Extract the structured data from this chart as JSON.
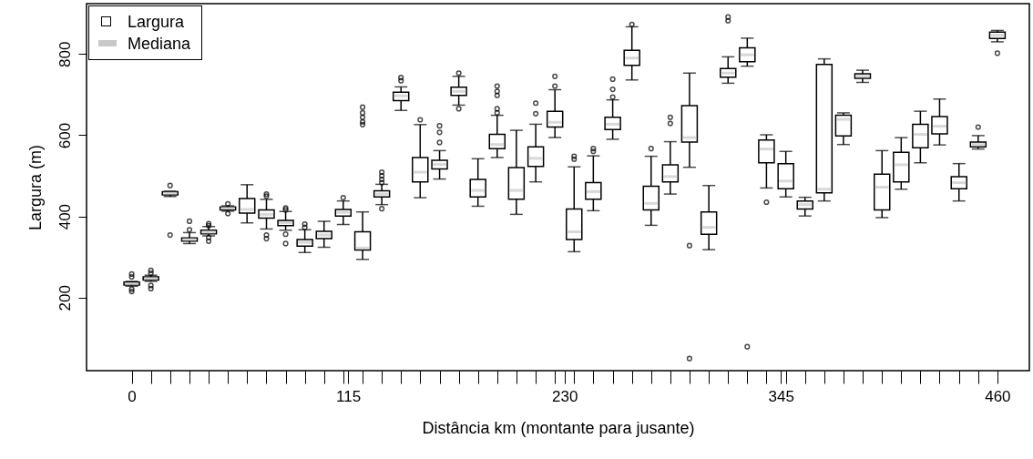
{
  "chart_data": {
    "type": "box",
    "xlabel": "Distância km (montante para jusante)",
    "ylabel": "Largura (m)",
    "xlim": [
      -24,
      477
    ],
    "ylim": [
      20,
      924
    ],
    "xticks": [
      0,
      115,
      230,
      345,
      460,
      {
        "value": 10.2,
        "label": null
      },
      {
        "value": 20.4,
        "label": null
      },
      {
        "value": 30.7,
        "label": null
      },
      {
        "value": 40.9,
        "label": null
      },
      {
        "value": 51.1,
        "label": null
      },
      {
        "value": 61.3,
        "label": null
      },
      {
        "value": 71.6,
        "label": null
      },
      {
        "value": 81.8,
        "label": null
      },
      {
        "value": 92,
        "label": null
      },
      {
        "value": 102.2,
        "label": null
      },
      {
        "value": 112.4,
        "label": null
      },
      {
        "value": 122.7,
        "label": null
      },
      {
        "value": 132.9,
        "label": null
      },
      {
        "value": 143.1,
        "label": null
      },
      {
        "value": 153.3,
        "label": null
      },
      {
        "value": 163.6,
        "label": null
      },
      {
        "value": 173.8,
        "label": null
      },
      {
        "value": 184,
        "label": null
      },
      {
        "value": 194.2,
        "label": null
      },
      {
        "value": 204.4,
        "label": null
      },
      {
        "value": 214.7,
        "label": null
      },
      {
        "value": 224.9,
        "label": null
      },
      {
        "value": 235.1,
        "label": null
      },
      {
        "value": 245.3,
        "label": null
      },
      {
        "value": 255.6,
        "label": null
      },
      {
        "value": 265.8,
        "label": null
      },
      {
        "value": 276,
        "label": null
      },
      {
        "value": 286.2,
        "label": null
      },
      {
        "value": 296.4,
        "label": null
      },
      {
        "value": 306.7,
        "label": null
      },
      {
        "value": 316.9,
        "label": null
      },
      {
        "value": 327.1,
        "label": null
      },
      {
        "value": 337.3,
        "label": null
      },
      {
        "value": 347.6,
        "label": null
      },
      {
        "value": 357.8,
        "label": null
      },
      {
        "value": 368,
        "label": null
      },
      {
        "value": 378.2,
        "label": null
      },
      {
        "value": 388.4,
        "label": null
      },
      {
        "value": 398.7,
        "label": null
      },
      {
        "value": 408.9,
        "label": null
      },
      {
        "value": 419.1,
        "label": null
      },
      {
        "value": 429.3,
        "label": null
      },
      {
        "value": 439.6,
        "label": null
      },
      {
        "value": 449.8,
        "label": null
      }
    ],
    "yticks": [
      200,
      400,
      600,
      800
    ],
    "grid": false,
    "legend": "top left",
    "annotations": [
      "Mediana"
    ],
    "series": [
      {
        "name": "Largura",
        "color": "#000000",
        "x": [
          0,
          10.2,
          20.4,
          30.7,
          40.9,
          51.1,
          61.3,
          71.6,
          81.8,
          92,
          102.2,
          112.4,
          122.7,
          132.9,
          143.1,
          153.3,
          163.6,
          173.8,
          184,
          194.2,
          204.4,
          214.7,
          224.9,
          235.1,
          245.3,
          255.6,
          265.8,
          276,
          286.2,
          296.4,
          306.7,
          316.9,
          327.1,
          337.3,
          347.6,
          357.8,
          368,
          378.2,
          388.4,
          398.7,
          408.9,
          419.1,
          429.3,
          439.6,
          449.8,
          460
        ],
        "boxes": [
          {
            "low": 228,
            "q1": 231,
            "median": 234,
            "q3": 238,
            "high": 240,
            "outliers": [
              258,
              251,
              221,
              215
            ]
          },
          {
            "low": 240,
            "q1": 243,
            "median": 247,
            "q3": 251,
            "high": 255,
            "outliers": [
              267,
              260,
              230,
              222
            ]
          },
          {
            "low": 449,
            "q1": 453,
            "median": 457,
            "q3": 461,
            "high": 462,
            "outliers": [
              476,
              354
            ]
          },
          {
            "low": 333,
            "q1": 339,
            "median": 343,
            "q3": 347,
            "high": 360,
            "outliers": [
              388,
              367
            ]
          },
          {
            "low": 352,
            "q1": 357,
            "median": 361,
            "q3": 366,
            "high": 375,
            "outliers": [
              382,
              377,
              348,
              339
            ]
          },
          {
            "low": 413,
            "q1": 416,
            "median": 420,
            "q3": 423,
            "high": 426,
            "outliers": [
              431,
              407
            ]
          },
          {
            "low": 384,
            "q1": 408,
            "median": 417,
            "q3": 444,
            "high": 478
          },
          {
            "low": 369,
            "q1": 396,
            "median": 405,
            "q3": 416,
            "high": 442,
            "outliers": [
              455,
              450,
              354,
              345
            ]
          },
          {
            "low": 366,
            "q1": 377,
            "median": 384,
            "q3": 390,
            "high": 412,
            "outliers": [
              421,
              416,
              356,
              333
            ]
          },
          {
            "low": 311,
            "q1": 327,
            "median": 336,
            "q3": 343,
            "high": 367,
            "outliers": [
              381,
              373
            ]
          },
          {
            "low": 324,
            "q1": 345,
            "median": 354,
            "q3": 363,
            "high": 388
          },
          {
            "low": 380,
            "q1": 401,
            "median": 410,
            "q3": 417,
            "high": 438,
            "outliers": [
              446
            ]
          },
          {
            "low": 294,
            "q1": 317,
            "median": 322,
            "q3": 362,
            "high": 411,
            "outliers": [
              669,
              655,
              644,
              633,
              626
            ]
          },
          {
            "low": 429,
            "q1": 448,
            "median": 455,
            "q3": 463,
            "high": 479,
            "outliers": [
              509,
              500,
              491,
              483,
              419
            ]
          },
          {
            "low": 661,
            "q1": 685,
            "median": 697,
            "q3": 706,
            "high": 719,
            "outliers": [
              742,
              734
            ]
          },
          {
            "low": 446,
            "q1": 485,
            "median": 509,
            "q3": 545,
            "high": 626,
            "outliers": [
              638
            ]
          },
          {
            "low": 492,
            "q1": 517,
            "median": 528,
            "q3": 538,
            "high": 562,
            "outliers": [
              623,
              607,
              582
            ]
          },
          {
            "low": 674,
            "q1": 698,
            "median": 708,
            "q3": 718,
            "high": 745,
            "outliers": [
              753,
              665
            ]
          },
          {
            "low": 425,
            "q1": 448,
            "median": 464,
            "q3": 491,
            "high": 542
          },
          {
            "low": 545,
            "q1": 567,
            "median": 577,
            "q3": 602,
            "high": 649,
            "outliers": [
              721,
              708,
              698,
              665,
              655
            ]
          },
          {
            "low": 405,
            "q1": 442,
            "median": 464,
            "q3": 520,
            "high": 612
          },
          {
            "low": 485,
            "q1": 523,
            "median": 543,
            "q3": 571,
            "high": 627,
            "outliers": [
              679,
              653
            ]
          },
          {
            "low": 594,
            "q1": 620,
            "median": 632,
            "q3": 659,
            "high": 712,
            "outliers": [
              745,
              721
            ]
          },
          {
            "low": 313,
            "q1": 343,
            "median": 362,
            "q3": 418,
            "high": 522,
            "outliers": [
              548,
              541
            ]
          },
          {
            "low": 414,
            "q1": 442,
            "median": 461,
            "q3": 483,
            "high": 549,
            "outliers": [
              567,
              560
            ]
          },
          {
            "low": 590,
            "q1": 614,
            "median": 627,
            "q3": 644,
            "high": 687,
            "outliers": [
              738,
              713,
              694
            ]
          },
          {
            "low": 736,
            "q1": 772,
            "median": 790,
            "q3": 809,
            "high": 867,
            "outliers": [
              873
            ]
          },
          {
            "low": 378,
            "q1": 416,
            "median": 432,
            "q3": 474,
            "high": 548,
            "outliers": [
              567
            ]
          },
          {
            "low": 455,
            "q1": 485,
            "median": 498,
            "q3": 527,
            "high": 584,
            "outliers": [
              644,
              629
            ]
          },
          {
            "low": 521,
            "q1": 583,
            "median": 594,
            "q3": 673,
            "high": 753,
            "outliers": [
              328,
              50
            ]
          },
          {
            "low": 318,
            "q1": 356,
            "median": 373,
            "q3": 411,
            "high": 476
          },
          {
            "low": 728,
            "q1": 743,
            "median": 753,
            "q3": 764,
            "high": 793,
            "outliers": [
              891,
              882
            ]
          },
          {
            "low": 770,
            "q1": 781,
            "median": 798,
            "q3": 815,
            "high": 839,
            "outliers": [
              79
            ]
          },
          {
            "low": 470,
            "q1": 532,
            "median": 566,
            "q3": 588,
            "high": 601,
            "outliers": [
              435
            ]
          },
          {
            "low": 448,
            "q1": 468,
            "median": 487,
            "q3": 530,
            "high": 560
          },
          {
            "low": 401,
            "q1": 418,
            "median": 429,
            "q3": 438,
            "high": 447
          },
          {
            "low": 438,
            "q1": 458,
            "median": 467,
            "q3": 774,
            "high": 788
          },
          {
            "low": 577,
            "q1": 598,
            "median": 639,
            "q3": 649,
            "high": 655
          },
          {
            "low": 730,
            "q1": 740,
            "median": 745,
            "q3": 751,
            "high": 760
          },
          {
            "low": 397,
            "q1": 416,
            "median": 472,
            "q3": 504,
            "high": 562
          },
          {
            "low": 467,
            "q1": 485,
            "median": 527,
            "q3": 558,
            "high": 594
          },
          {
            "low": 532,
            "q1": 569,
            "median": 602,
            "q3": 627,
            "high": 659
          },
          {
            "low": 576,
            "q1": 603,
            "median": 622,
            "q3": 646,
            "high": 689
          },
          {
            "low": 438,
            "q1": 468,
            "median": 483,
            "q3": 498,
            "high": 530
          },
          {
            "low": 566,
            "q1": 571,
            "median": 577,
            "q3": 583,
            "high": 599,
            "outliers": [
              620
            ]
          },
          {
            "low": 830,
            "q1": 838,
            "median": 846,
            "q3": 854,
            "high": 858,
            "outliers": [
              802
            ]
          }
        ]
      }
    ]
  }
}
